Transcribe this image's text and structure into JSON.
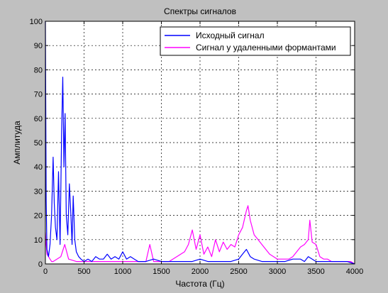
{
  "figure": {
    "background": "#c0c0c0"
  },
  "chart_data": {
    "type": "line",
    "title": "Спектры сигналов",
    "xlabel": "Частота (Гц)",
    "ylabel": "Амплитуда",
    "xlim": [
      0,
      4000
    ],
    "ylim": [
      0,
      100
    ],
    "xticks": [
      0,
      500,
      1000,
      1500,
      2000,
      2500,
      3000,
      3500,
      4000
    ],
    "yticks": [
      0,
      10,
      20,
      30,
      40,
      50,
      60,
      70,
      80,
      90,
      100
    ],
    "grid": true,
    "legend_position": "top-right",
    "series": [
      {
        "name": "Исходный сигнал",
        "color": "#0000ff",
        "x": [
          0,
          10,
          20,
          40,
          60,
          80,
          100,
          115,
          130,
          150,
          170,
          190,
          210,
          225,
          240,
          255,
          270,
          290,
          310,
          330,
          345,
          360,
          380,
          400,
          430,
          460,
          500,
          550,
          600,
          650,
          700,
          750,
          800,
          850,
          900,
          950,
          1000,
          1050,
          1100,
          1150,
          1200,
          1300,
          1400,
          1500,
          1600,
          1700,
          1800,
          1900,
          2000,
          2100,
          2200,
          2300,
          2400,
          2500,
          2550,
          2600,
          2650,
          2700,
          2800,
          2900,
          3000,
          3100,
          3200,
          3300,
          3350,
          3400,
          3450,
          3500,
          3600,
          3700,
          3800,
          3900,
          4000
        ],
        "y": [
          100,
          26,
          6,
          3,
          8,
          20,
          44,
          25,
          15,
          10,
          38,
          8,
          55,
          77,
          40,
          62,
          20,
          12,
          33,
          20,
          8,
          28,
          10,
          5,
          3,
          2,
          1,
          2,
          1,
          3,
          2,
          2,
          4,
          2,
          3,
          2,
          5,
          2,
          3,
          2,
          1,
          1,
          2,
          1,
          1,
          1,
          1,
          1,
          2,
          1,
          1,
          1,
          1,
          2,
          4,
          6,
          3,
          2,
          1,
          1,
          1,
          1,
          2,
          2,
          1,
          3,
          2,
          1,
          1,
          1,
          1,
          1,
          0
        ]
      },
      {
        "name": "Сигнал у удаленными формантами",
        "color": "#ff00ff",
        "x": [
          0,
          10,
          20,
          40,
          60,
          80,
          100,
          150,
          200,
          250,
          300,
          400,
          500,
          600,
          700,
          800,
          900,
          1000,
          1100,
          1200,
          1300,
          1350,
          1400,
          1500,
          1600,
          1700,
          1750,
          1800,
          1850,
          1900,
          1950,
          2000,
          2050,
          2100,
          2150,
          2200,
          2250,
          2300,
          2350,
          2400,
          2450,
          2500,
          2550,
          2600,
          2620,
          2650,
          2700,
          2750,
          2800,
          2850,
          2900,
          2950,
          3000,
          3050,
          3100,
          3150,
          3200,
          3250,
          3300,
          3350,
          3400,
          3420,
          3450,
          3500,
          3550,
          3600,
          3650,
          3700,
          3750,
          3800,
          3850,
          3900,
          3950,
          4000
        ],
        "y": [
          13,
          8,
          4,
          3,
          2,
          1,
          1,
          2,
          3,
          8,
          2,
          1,
          1,
          1,
          1,
          1,
          1,
          1,
          1,
          1,
          1,
          8,
          1,
          1,
          1,
          3,
          4,
          5,
          8,
          14,
          6,
          12,
          4,
          7,
          3,
          10,
          5,
          9,
          6,
          8,
          7,
          12,
          15,
          22,
          24,
          18,
          12,
          10,
          8,
          6,
          4,
          3,
          2,
          2,
          2,
          2,
          3,
          5,
          7,
          8,
          10,
          18,
          9,
          8,
          3,
          2,
          2,
          1,
          1,
          1,
          1,
          1,
          1,
          0
        ]
      }
    ]
  }
}
